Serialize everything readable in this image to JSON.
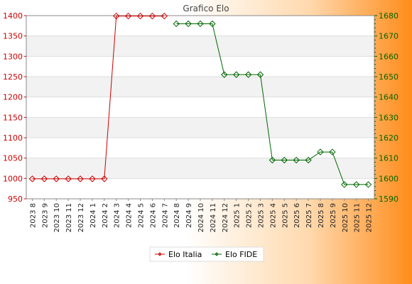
{
  "chart_data": {
    "type": "line",
    "title": "Grafico Elo",
    "categories": [
      "2023 8",
      "2023 9",
      "2023 10",
      "2023 11",
      "2023 12",
      "2024 1",
      "2024 2",
      "2024 3",
      "2024 4",
      "2024 5",
      "2024 6",
      "2024 7",
      "2024 8",
      "2024 9",
      "2024 10",
      "2024 11",
      "2024 12",
      "2025 1",
      "2025 2",
      "2025 3",
      "2025 4",
      "2025 5",
      "2025 6",
      "2025 7",
      "2025 8",
      "2025 9",
      "2025 10",
      "2025 11",
      "2025 12"
    ],
    "left_axis": {
      "ylim": [
        950,
        1400
      ],
      "ticks": [
        950,
        1000,
        1050,
        1100,
        1150,
        1200,
        1250,
        1300,
        1350,
        1400
      ],
      "color": "#cc0000"
    },
    "right_axis": {
      "ylim": [
        1590,
        1680
      ],
      "ticks": [
        1590,
        1600,
        1610,
        1620,
        1630,
        1640,
        1650,
        1660,
        1670,
        1680
      ],
      "color": "#006600"
    },
    "series": [
      {
        "name": "Elo Italia",
        "axis": "left",
        "color": "#cc0000",
        "values": [
          999,
          999,
          999,
          999,
          999,
          999,
          999,
          1399,
          1399,
          1399,
          1399,
          1399,
          null,
          null,
          null,
          null,
          null,
          null,
          null,
          null,
          null,
          null,
          null,
          null,
          null,
          null,
          null,
          null,
          null
        ]
      },
      {
        "name": "Elo FIDE",
        "axis": "right",
        "color": "#006600",
        "values": [
          null,
          null,
          null,
          null,
          null,
          null,
          null,
          null,
          null,
          null,
          null,
          null,
          1676,
          1676,
          1676,
          1676,
          1651,
          1651,
          1651,
          1651,
          1609,
          1609,
          1609,
          1609,
          1613,
          1613,
          1597,
          1597,
          1597
        ]
      }
    ],
    "grid": true,
    "legend": "bottom-center"
  }
}
